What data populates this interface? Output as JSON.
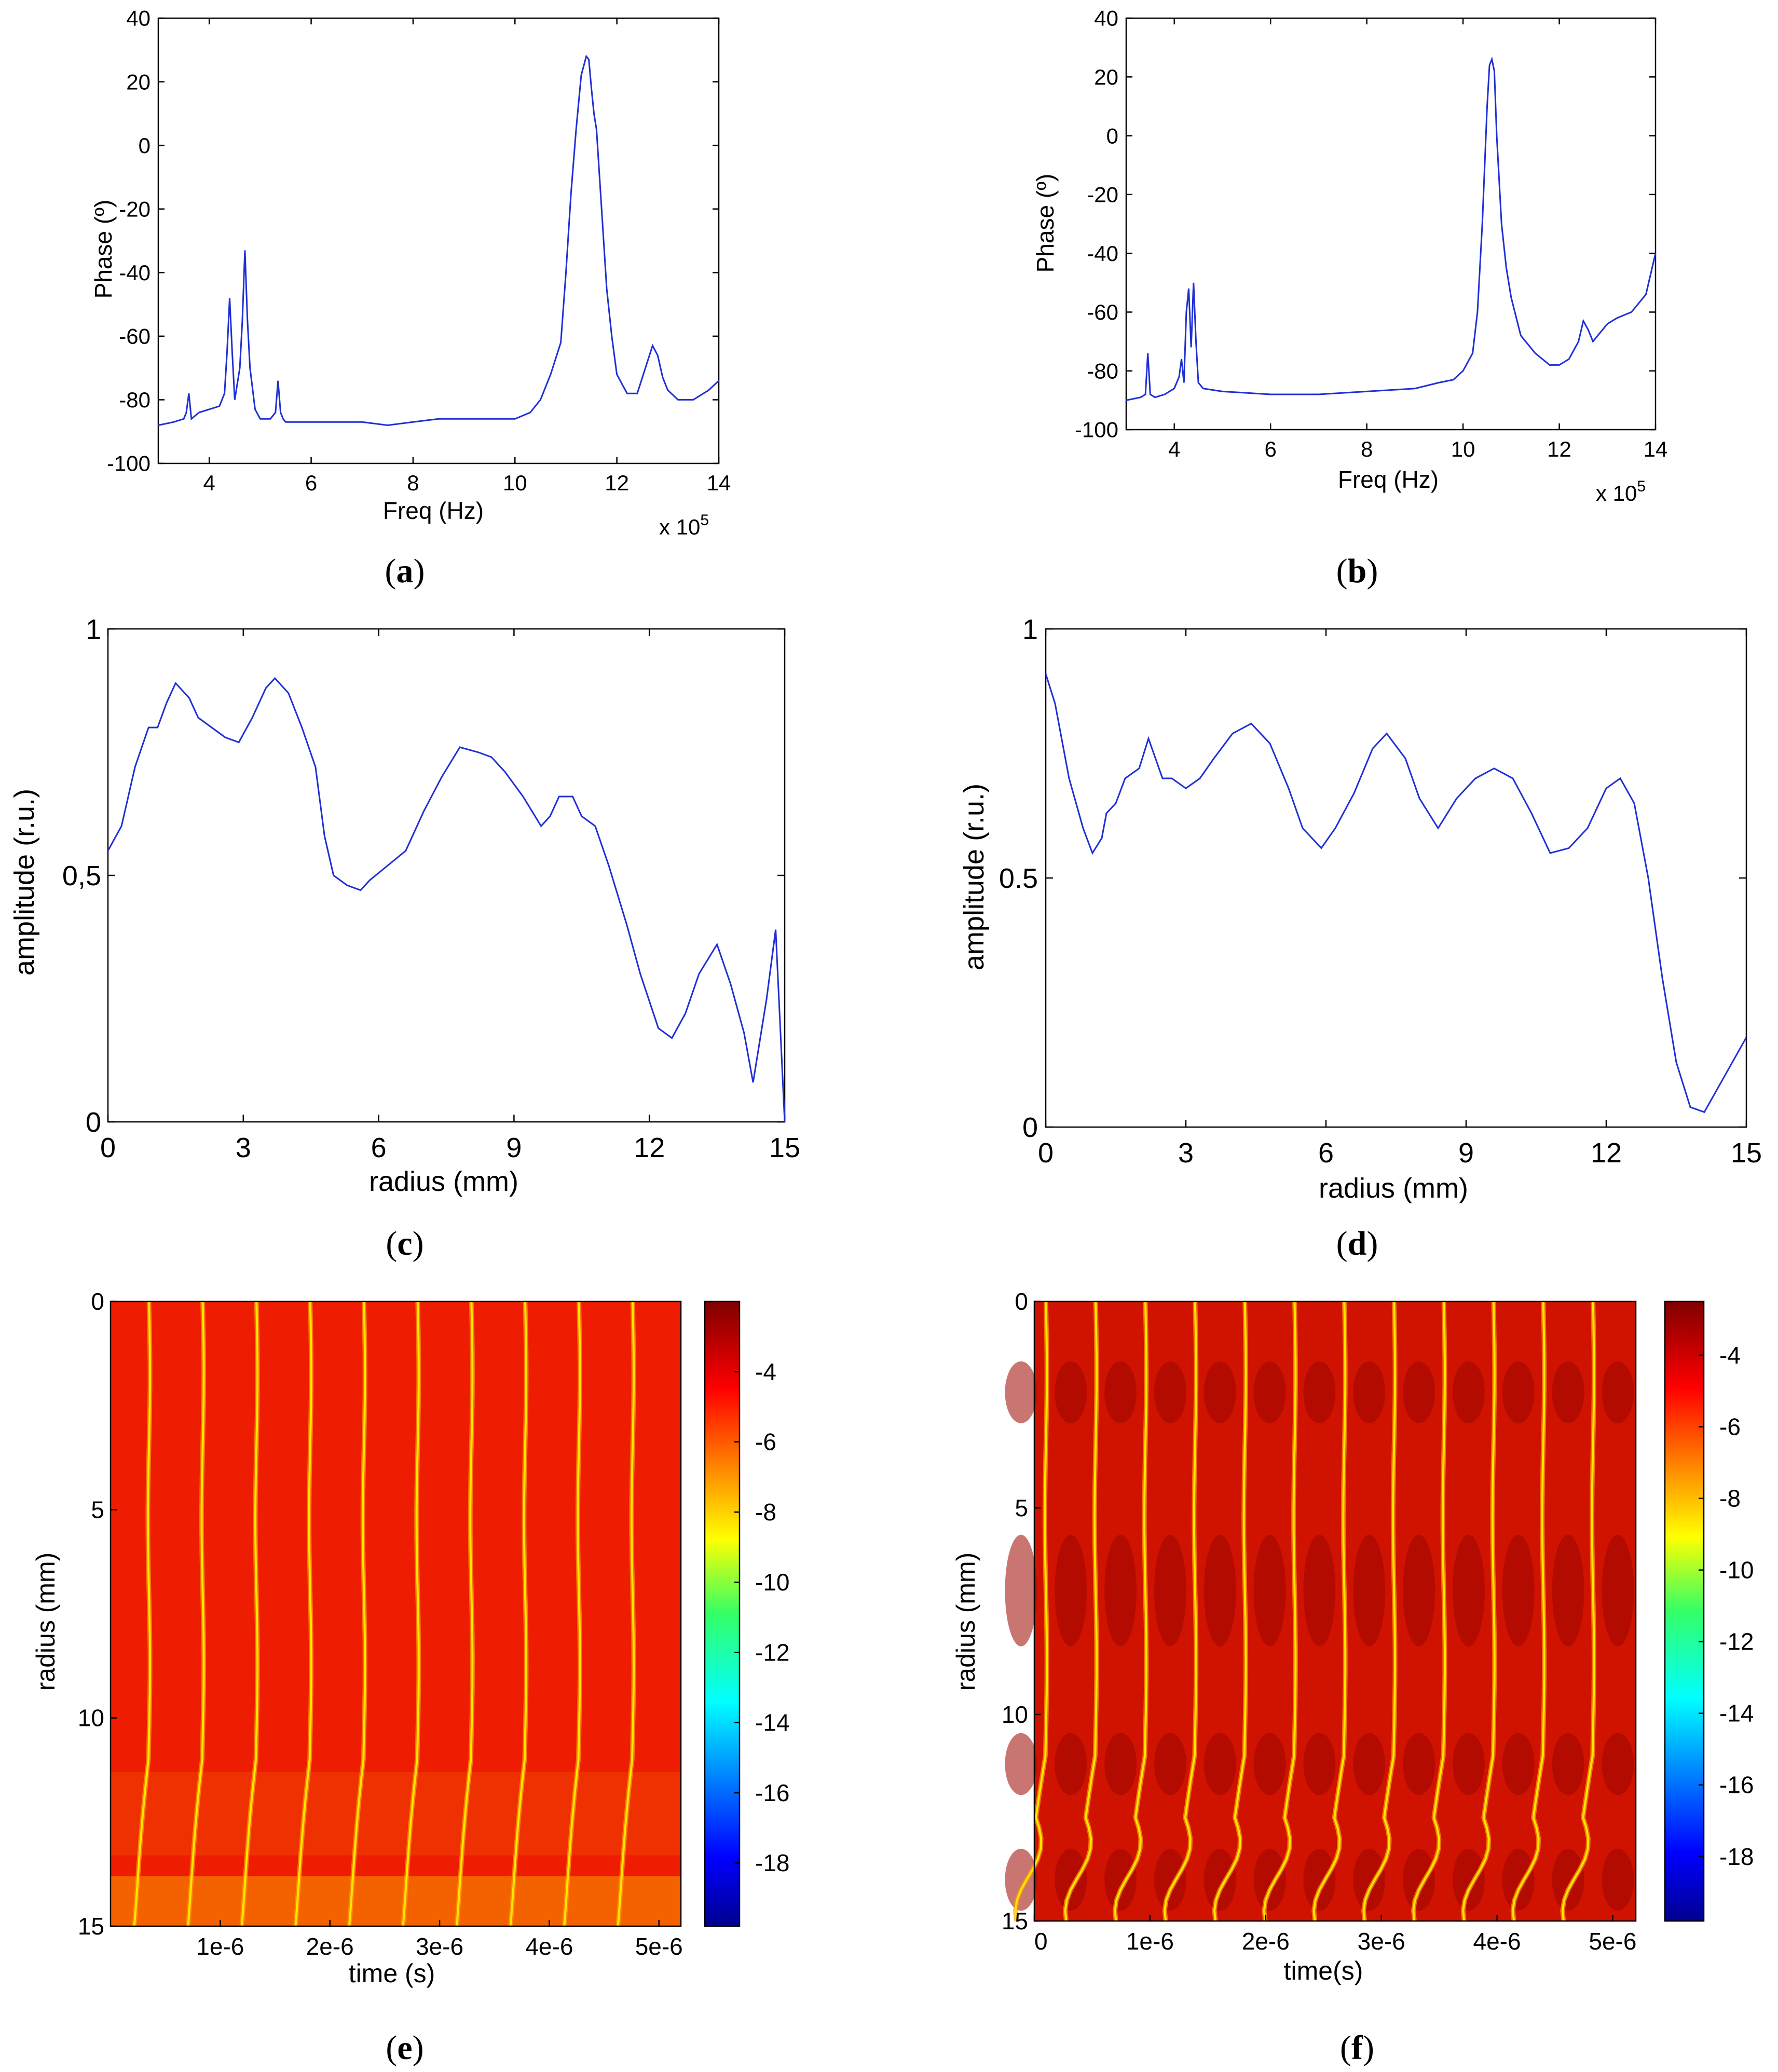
{
  "chart_data": [
    {
      "id": "a",
      "type": "line",
      "panel_label": "a",
      "xlabel": "Freq (Hz)",
      "ylabel": "Phase (º)",
      "exponent_label": "x 10",
      "exponent_power": "5",
      "xlim": [
        3,
        14
      ],
      "ylim": [
        -100,
        40
      ],
      "xticks": [
        "4",
        "6",
        "8",
        "10",
        "12",
        "14"
      ],
      "yticks": [
        "-100",
        "-80",
        "-60",
        "-40",
        "-20",
        "0",
        "20",
        "40"
      ],
      "series": [
        {
          "name": "phase",
          "x": [
            3,
            3.3,
            3.5,
            3.55,
            3.6,
            3.65,
            3.8,
            4.0,
            4.2,
            4.3,
            4.35,
            4.4,
            4.45,
            4.5,
            4.6,
            4.65,
            4.7,
            4.75,
            4.8,
            4.9,
            5.0,
            5.2,
            5.3,
            5.35,
            5.4,
            5.45,
            5.5,
            6,
            6.5,
            7,
            7.5,
            8,
            8.5,
            9,
            9.5,
            10,
            10.3,
            10.5,
            10.7,
            10.9,
            11.0,
            11.1,
            11.2,
            11.3,
            11.4,
            11.45,
            11.5,
            11.55,
            11.6,
            11.7,
            11.8,
            11.9,
            12.0,
            12.2,
            12.4,
            12.6,
            12.7,
            12.8,
            12.9,
            13.0,
            13.2,
            13.5,
            13.8,
            14.0
          ],
          "y": [
            -88,
            -87,
            -86,
            -84,
            -78,
            -86,
            -84,
            -83,
            -82,
            -78,
            -65,
            -48,
            -65,
            -80,
            -70,
            -55,
            -33,
            -55,
            -70,
            -83,
            -86,
            -86,
            -84,
            -74,
            -84,
            -86,
            -87,
            -87,
            -87,
            -87,
            -88,
            -87,
            -86,
            -86,
            -86,
            -86,
            -84,
            -80,
            -72,
            -62,
            -40,
            -15,
            5,
            22,
            28,
            27,
            18,
            10,
            5,
            -20,
            -45,
            -60,
            -72,
            -78,
            -78,
            -68,
            -63,
            -66,
            -73,
            -77,
            -80,
            -80,
            -77,
            -74
          ]
        }
      ]
    },
    {
      "id": "b",
      "type": "line",
      "panel_label": "b",
      "xlabel": "Freq (Hz)",
      "ylabel": "Phase (º)",
      "exponent_label": "x 10",
      "exponent_power": "5",
      "xlim": [
        3,
        14
      ],
      "ylim": [
        -100,
        40
      ],
      "xticks": [
        "4",
        "6",
        "8",
        "10",
        "12",
        "14"
      ],
      "yticks": [
        "-100",
        "-80",
        "-60",
        "-40",
        "-20",
        "0",
        "20",
        "40"
      ],
      "series": [
        {
          "name": "phase",
          "x": [
            3,
            3.3,
            3.4,
            3.45,
            3.5,
            3.6,
            3.8,
            4.0,
            4.1,
            4.15,
            4.2,
            4.25,
            4.3,
            4.35,
            4.4,
            4.45,
            4.5,
            4.6,
            5,
            6,
            7,
            8,
            9,
            9.5,
            9.8,
            10.0,
            10.2,
            10.3,
            10.4,
            10.5,
            10.55,
            10.6,
            10.65,
            10.7,
            10.8,
            10.9,
            11.0,
            11.2,
            11.5,
            11.8,
            12.0,
            12.2,
            12.4,
            12.5,
            12.6,
            12.7,
            12.8,
            13.0,
            13.2,
            13.5,
            13.8,
            14.0
          ],
          "y": [
            -90,
            -89,
            -88,
            -74,
            -88,
            -89,
            -88,
            -86,
            -82,
            -76,
            -84,
            -60,
            -52,
            -72,
            -50,
            -70,
            -84,
            -86,
            -87,
            -88,
            -88,
            -87,
            -86,
            -84,
            -83,
            -80,
            -74,
            -60,
            -30,
            10,
            24,
            26,
            22,
            0,
            -30,
            -45,
            -55,
            -68,
            -74,
            -78,
            -78,
            -76,
            -70,
            -63,
            -66,
            -70,
            -68,
            -64,
            -62,
            -60,
            -54,
            -40
          ]
        }
      ]
    },
    {
      "id": "c",
      "type": "line",
      "panel_label": "c",
      "xlabel": "radius (mm)",
      "ylabel": "amplitude (r.u.)",
      "xlim": [
        0,
        15
      ],
      "ylim": [
        0,
        1
      ],
      "xticks": [
        "0",
        "3",
        "6",
        "9",
        "12",
        "15"
      ],
      "yticks": [
        "0",
        "0,5",
        "1"
      ],
      "series": [
        {
          "name": "amplitude",
          "x": [
            0,
            0.3,
            0.6,
            0.9,
            1.1,
            1.3,
            1.5,
            1.8,
            2.0,
            2.3,
            2.6,
            2.9,
            3.2,
            3.5,
            3.7,
            4.0,
            4.3,
            4.6,
            4.8,
            5.0,
            5.3,
            5.6,
            5.8,
            6.2,
            6.6,
            7.0,
            7.4,
            7.8,
            8.2,
            8.5,
            8.8,
            9.2,
            9.6,
            9.8,
            10.0,
            10.3,
            10.5,
            10.8,
            11.1,
            11.5,
            11.8,
            12.2,
            12.5,
            12.8,
            13.1,
            13.5,
            13.8,
            14.1,
            14.3,
            14.6,
            14.8,
            15.0
          ],
          "y": [
            0.55,
            0.6,
            0.72,
            0.8,
            0.8,
            0.85,
            0.89,
            0.86,
            0.82,
            0.8,
            0.78,
            0.77,
            0.82,
            0.88,
            0.9,
            0.87,
            0.8,
            0.72,
            0.58,
            0.5,
            0.48,
            0.47,
            0.49,
            0.52,
            0.55,
            0.63,
            0.7,
            0.76,
            0.75,
            0.74,
            0.71,
            0.66,
            0.6,
            0.62,
            0.66,
            0.66,
            0.62,
            0.6,
            0.52,
            0.4,
            0.3,
            0.19,
            0.17,
            0.22,
            0.3,
            0.36,
            0.28,
            0.18,
            0.08,
            0.25,
            0.39,
            0.0
          ]
        }
      ]
    },
    {
      "id": "d",
      "type": "line",
      "panel_label": "d",
      "xlabel": "radius (mm)",
      "ylabel": "amplitude (r.u.)",
      "xlim": [
        0,
        15
      ],
      "ylim": [
        0,
        1
      ],
      "xticks": [
        "0",
        "3",
        "6",
        "9",
        "12",
        "15"
      ],
      "yticks": [
        "0",
        "0.5",
        "1"
      ],
      "series": [
        {
          "name": "amplitude",
          "x": [
            0,
            0.2,
            0.5,
            0.8,
            1.0,
            1.2,
            1.3,
            1.5,
            1.7,
            2.0,
            2.2,
            2.5,
            2.7,
            3.0,
            3.3,
            3.6,
            4.0,
            4.4,
            4.8,
            5.2,
            5.5,
            5.9,
            6.2,
            6.6,
            7.0,
            7.3,
            7.7,
            8.0,
            8.4,
            8.8,
            9.2,
            9.6,
            10.0,
            10.4,
            10.8,
            11.2,
            11.6,
            12.0,
            12.3,
            12.6,
            12.9,
            13.2,
            13.5,
            13.8,
            14.1,
            14.4,
            14.7,
            15.0
          ],
          "y": [
            0.91,
            0.85,
            0.7,
            0.6,
            0.55,
            0.58,
            0.63,
            0.65,
            0.7,
            0.72,
            0.78,
            0.7,
            0.7,
            0.68,
            0.7,
            0.74,
            0.79,
            0.81,
            0.77,
            0.68,
            0.6,
            0.56,
            0.6,
            0.67,
            0.76,
            0.79,
            0.74,
            0.66,
            0.6,
            0.66,
            0.7,
            0.72,
            0.7,
            0.63,
            0.55,
            0.56,
            0.6,
            0.68,
            0.7,
            0.65,
            0.5,
            0.3,
            0.13,
            0.04,
            0.03,
            0.08,
            0.13,
            0.18
          ]
        }
      ]
    },
    {
      "id": "e",
      "type": "heatmap",
      "panel_label": "e",
      "xlabel": "time (s)",
      "ylabel": "radius (mm)",
      "xticks": [
        "1e-6",
        "2e-6",
        "3e-6",
        "4e-6",
        "5e-6"
      ],
      "yticks": [
        "0",
        "5",
        "10",
        "15"
      ],
      "colorbar_ticks": [
        "-4",
        "-6",
        "-8",
        "-10",
        "-12",
        "-14",
        "-16",
        "-18"
      ],
      "colorbar_range": [
        -19.8,
        -2
      ],
      "x_range": [
        0,
        5.2e-06
      ],
      "y_range": [
        0,
        15
      ],
      "period": 4.9e-07,
      "first_front": 3.5e-07
    },
    {
      "id": "f",
      "type": "heatmap",
      "panel_label": "f",
      "xlabel": "time(s)",
      "ylabel": "radius (mm)",
      "xticks": [
        "0",
        "1e-6",
        "2e-6",
        "3e-6",
        "4e-6",
        "5e-6"
      ],
      "yticks": [
        "0",
        "5",
        "10",
        "15"
      ],
      "colorbar_ticks": [
        "-4",
        "-6",
        "-8",
        "-10",
        "-12",
        "-14",
        "-16",
        "-18"
      ],
      "colorbar_range": [
        -19.8,
        -2.5
      ],
      "x_range": [
        0,
        5.2e-06
      ],
      "y_range": [
        0,
        15
      ],
      "period": 4.3e-07,
      "first_front": 1e-07
    }
  ]
}
